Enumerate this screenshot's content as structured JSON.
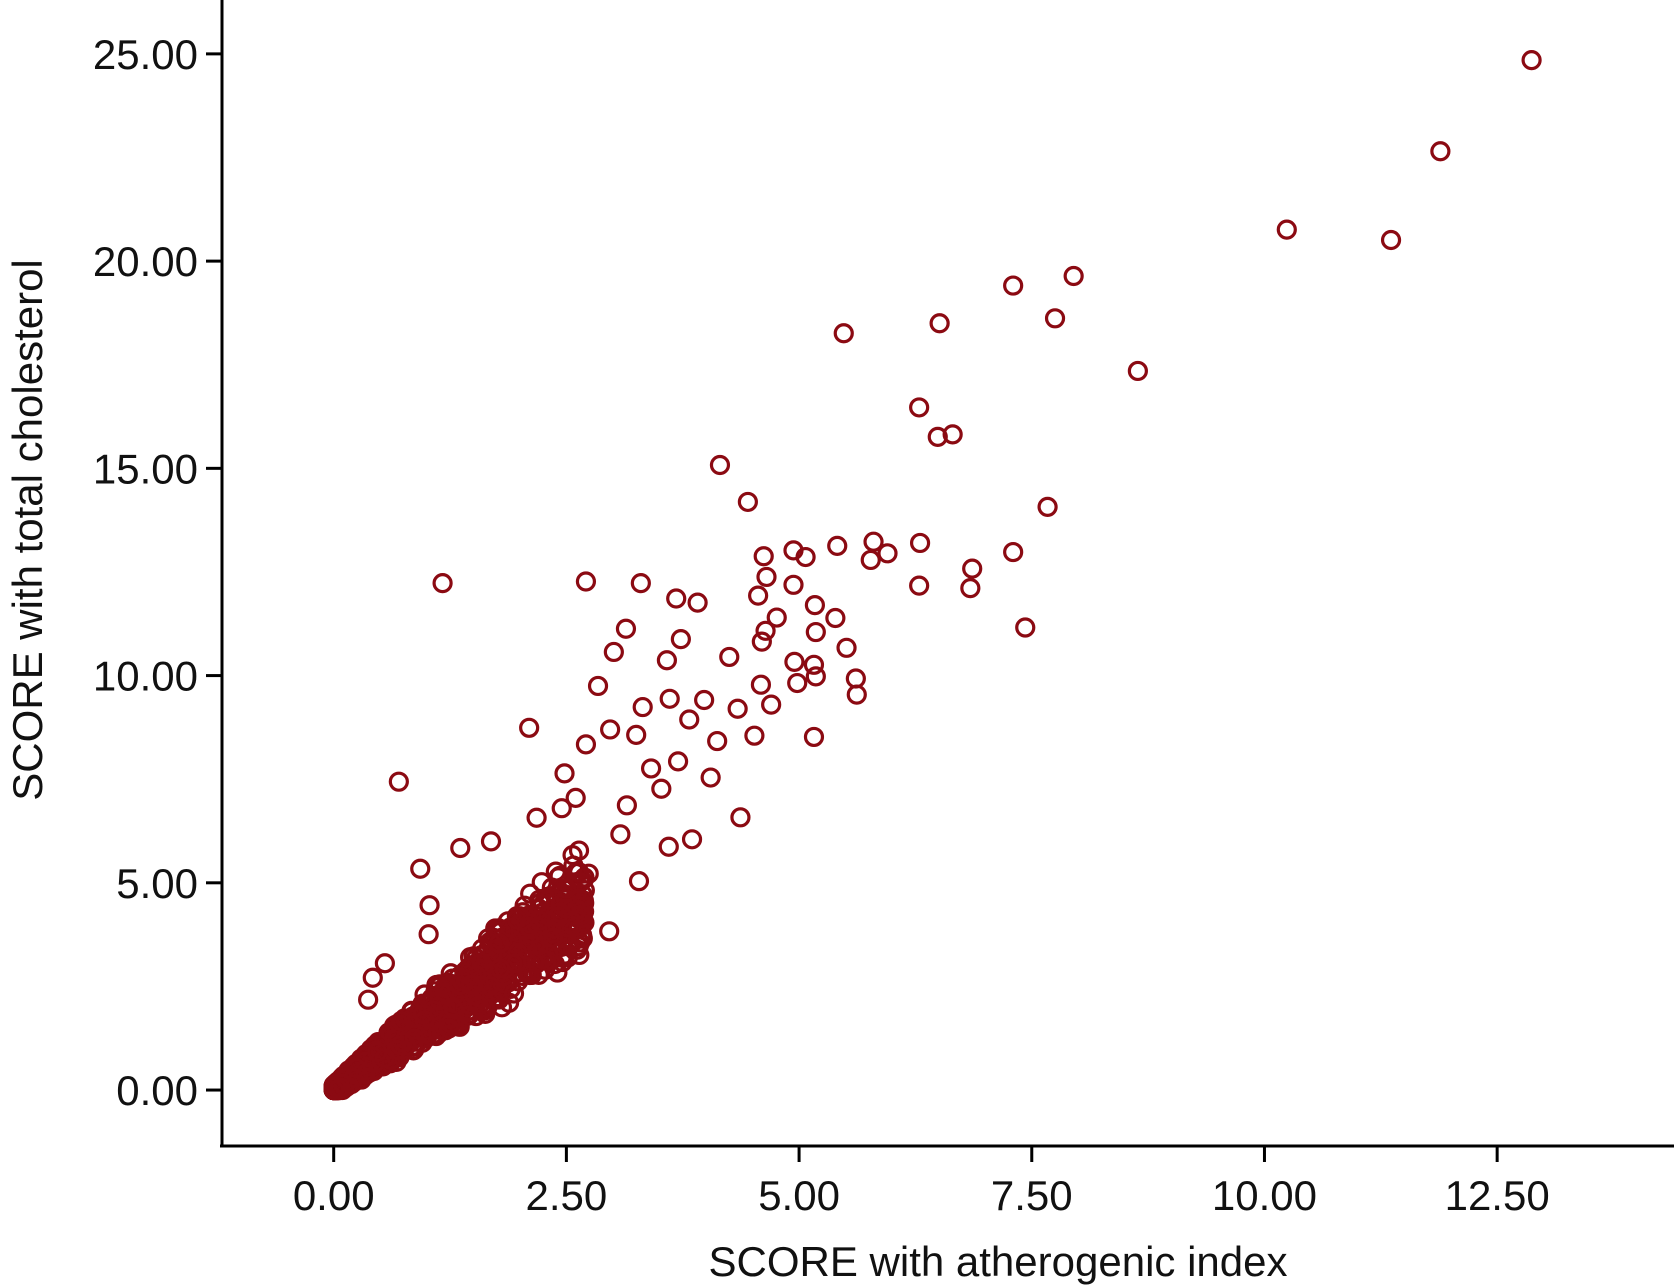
{
  "chart_data": {
    "type": "scatter",
    "xlabel": "SCORE with atherogenic index",
    "ylabel": "SCORE with total cholesterol",
    "xlim": [
      -1.2,
      14.4
    ],
    "ylim": [
      -1.35,
      26.3
    ],
    "x_ticks": [
      {
        "value": 0,
        "label": "0.00"
      },
      {
        "value": 2.5,
        "label": "2.50"
      },
      {
        "value": 5,
        "label": "5.00"
      },
      {
        "value": 7.5,
        "label": "7.50"
      },
      {
        "value": 10,
        "label": "10.00"
      },
      {
        "value": 12.5,
        "label": "12.50"
      }
    ],
    "y_ticks": [
      {
        "value": 0,
        "label": "0.00"
      },
      {
        "value": 5,
        "label": "5.00"
      },
      {
        "value": 10,
        "label": "10.00"
      },
      {
        "value": 15,
        "label": "15.00"
      },
      {
        "value": 20,
        "label": "20.00"
      },
      {
        "value": 25,
        "label": "25.00"
      }
    ],
    "grid": false,
    "legend": "none",
    "marker": "hollow-circle",
    "marker_color": "#8B0A12",
    "series": [
      {
        "points": [
          [
            12.87,
            24.85
          ],
          [
            11.89,
            22.65
          ],
          [
            10.24,
            20.76
          ],
          [
            11.36,
            20.51
          ],
          [
            7.3,
            19.41
          ],
          [
            7.95,
            19.64
          ],
          [
            5.48,
            18.26
          ],
          [
            6.51,
            18.5
          ],
          [
            7.75,
            18.62
          ],
          [
            8.64,
            17.35
          ],
          [
            6.29,
            16.47
          ],
          [
            6.49,
            15.76
          ],
          [
            6.65,
            15.82
          ],
          [
            4.15,
            15.08
          ],
          [
            4.45,
            14.19
          ],
          [
            7.67,
            14.07
          ],
          [
            5.41,
            13.13
          ],
          [
            5.8,
            13.23
          ],
          [
            6.3,
            13.2
          ],
          [
            5.95,
            12.95
          ],
          [
            5.77,
            12.79
          ],
          [
            7.3,
            12.98
          ],
          [
            6.86,
            12.58
          ],
          [
            6.29,
            12.17
          ],
          [
            6.84,
            12.11
          ],
          [
            7.43,
            11.16
          ],
          [
            1.17,
            12.23
          ],
          [
            2.71,
            12.27
          ],
          [
            3.3,
            12.23
          ],
          [
            4.62,
            12.88
          ],
          [
            4.94,
            13.02
          ],
          [
            5.07,
            12.86
          ],
          [
            3.68,
            11.86
          ],
          [
            3.91,
            11.76
          ],
          [
            4.56,
            11.93
          ],
          [
            4.65,
            12.38
          ],
          [
            4.76,
            11.4
          ],
          [
            4.94,
            12.19
          ],
          [
            5.17,
            11.7
          ],
          [
            5.39,
            11.39
          ],
          [
            3.14,
            11.13
          ],
          [
            4.64,
            11.08
          ],
          [
            5.18,
            11.05
          ],
          [
            3.73,
            10.88
          ],
          [
            3.01,
            10.57
          ],
          [
            4.6,
            10.82
          ],
          [
            5.51,
            10.67
          ],
          [
            3.58,
            10.37
          ],
          [
            4.95,
            10.33
          ],
          [
            5.16,
            10.26
          ],
          [
            5.61,
            9.93
          ],
          [
            5.62,
            9.54
          ],
          [
            2.84,
            9.75
          ],
          [
            4.25,
            10.45
          ],
          [
            4.59,
            9.78
          ],
          [
            4.98,
            9.82
          ],
          [
            5.18,
            9.98
          ],
          [
            3.32,
            9.24
          ],
          [
            3.61,
            9.44
          ],
          [
            3.98,
            9.41
          ],
          [
            4.34,
            9.2
          ],
          [
            4.7,
            9.3
          ],
          [
            5.16,
            8.52
          ],
          [
            2.1,
            8.74
          ],
          [
            2.97,
            8.7
          ],
          [
            3.25,
            8.57
          ],
          [
            3.82,
            8.94
          ],
          [
            4.12,
            8.42
          ],
          [
            4.52,
            8.55
          ],
          [
            0.7,
            7.44
          ],
          [
            2.48,
            7.64
          ],
          [
            2.71,
            8.34
          ],
          [
            3.41,
            7.76
          ],
          [
            3.7,
            7.93
          ],
          [
            4.05,
            7.54
          ],
          [
            4.37,
            6.58
          ],
          [
            0.93,
            5.34
          ],
          [
            2.96,
            3.83
          ],
          [
            3.28,
            5.04
          ],
          [
            3.6,
            5.87
          ],
          [
            3.85,
            6.05
          ],
          [
            2.18,
            6.57
          ],
          [
            1.36,
            5.84
          ],
          [
            1.69,
            6.0
          ],
          [
            2.45,
            6.8
          ],
          [
            1.03,
            4.46
          ],
          [
            2.5,
            4.86
          ],
          [
            1.02,
            3.76
          ],
          [
            0.55,
            3.06
          ],
          [
            2.74,
            5.22
          ],
          [
            3.08,
            6.17
          ],
          [
            2.6,
            7.05
          ],
          [
            3.15,
            6.87
          ],
          [
            3.52,
            7.27
          ],
          [
            0.37,
            2.18
          ],
          [
            0.42,
            2.71
          ]
        ]
      }
    ]
  }
}
